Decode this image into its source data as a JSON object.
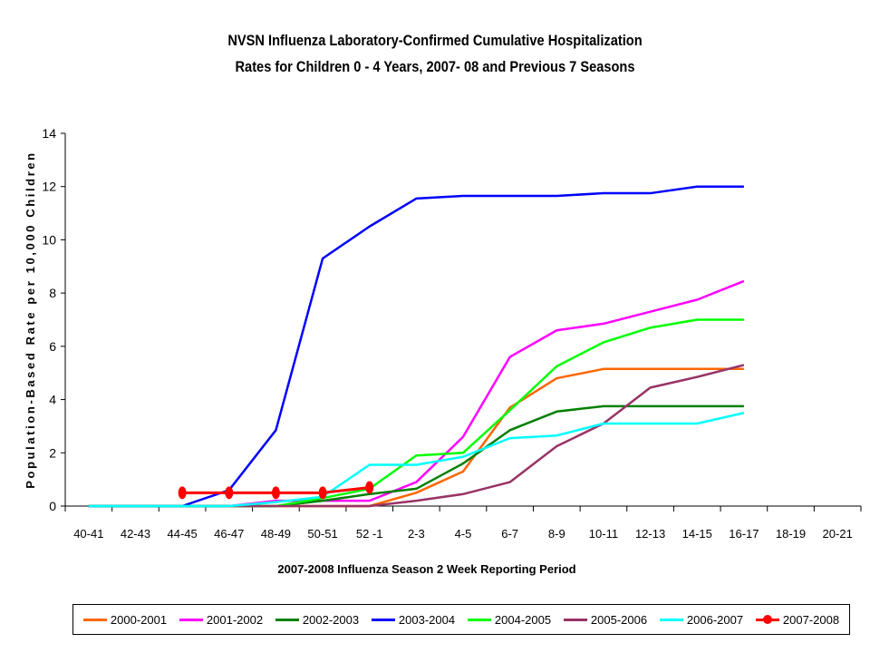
{
  "chart_data": {
    "type": "line",
    "title": [
      "NVSN Influenza Laboratory-Confirmed Cumulative Hospitalization",
      "Rates for Children 0 - 4 Years, 2007- 08 and Previous 7 Seasons"
    ],
    "xlabel": "2007-2008 Influenza Season 2 Week Reporting Period",
    "ylabel": "Population-Based Rate per 10,000 Children",
    "ylim": [
      0,
      14
    ],
    "yticks": [
      "0",
      "2",
      "4",
      "6",
      "8",
      "10",
      "12",
      "14"
    ],
    "categories": [
      "40-41",
      "42-43",
      "44-45",
      "46-47",
      "48-49",
      "50-51",
      "52 -1",
      "2-3",
      "4-5",
      "6-7",
      "8-9",
      "10-11",
      "12-13",
      "14-15",
      "16-17",
      "18-19",
      "20-21"
    ],
    "legend_position": "bottom",
    "series": [
      {
        "name": "2000-2001",
        "color": "#ff6600",
        "marker": false,
        "values": [
          0,
          0,
          0,
          0,
          0,
          0,
          0,
          0.5,
          1.3,
          3.7,
          4.8,
          5.15,
          5.15,
          5.15,
          5.15,
          null,
          null
        ]
      },
      {
        "name": "2001-2002",
        "color": "#ff00ff",
        "marker": false,
        "values": [
          0,
          0,
          0,
          0,
          0.2,
          0.2,
          0.2,
          0.9,
          2.6,
          5.6,
          6.6,
          6.85,
          7.3,
          7.75,
          8.45,
          null,
          null
        ]
      },
      {
        "name": "2002-2003",
        "color": "#008000",
        "marker": false,
        "values": [
          0,
          0,
          0,
          0,
          0,
          0.2,
          0.45,
          0.65,
          1.6,
          2.85,
          3.55,
          3.75,
          3.75,
          3.75,
          3.75,
          null,
          null
        ]
      },
      {
        "name": "2003-2004",
        "color": "#0000ff",
        "marker": false,
        "values": [
          0,
          0,
          0,
          0.6,
          2.85,
          9.3,
          10.5,
          11.55,
          11.65,
          11.65,
          11.65,
          11.75,
          11.75,
          12.0,
          12.0,
          null,
          null
        ]
      },
      {
        "name": "2004-2005",
        "color": "#00ff00",
        "marker": false,
        "values": [
          0,
          0,
          0,
          0,
          0,
          0.3,
          0.65,
          1.9,
          2.0,
          3.6,
          5.25,
          6.15,
          6.7,
          7.0,
          7.0,
          null,
          null
        ]
      },
      {
        "name": "2005-2006",
        "color": "#993366",
        "marker": false,
        "values": [
          0,
          0,
          0,
          0,
          0,
          0,
          0,
          0.2,
          0.45,
          0.9,
          2.25,
          3.1,
          4.45,
          4.85,
          5.3,
          null,
          null
        ]
      },
      {
        "name": "2006-2007",
        "color": "#00ffff",
        "marker": false,
        "values": [
          0,
          0,
          0,
          0,
          0.15,
          0.35,
          1.55,
          1.55,
          1.85,
          2.55,
          2.65,
          3.1,
          3.1,
          3.1,
          3.5,
          null,
          null
        ]
      },
      {
        "name": "2007-2008",
        "color": "#ff0000",
        "marker": true,
        "values": [
          null,
          null,
          0.5,
          0.5,
          0.5,
          0.5,
          0.7,
          null,
          null,
          null,
          null,
          null,
          null,
          null,
          null,
          null,
          null
        ]
      }
    ]
  }
}
